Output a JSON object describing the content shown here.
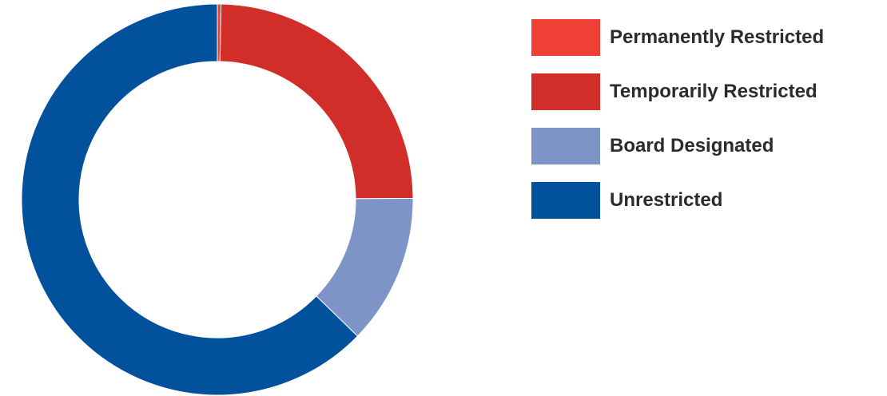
{
  "chart_data": {
    "type": "pie",
    "variant": "donut",
    "categories": [
      "Permanently Restricted",
      "Temporarily Restricted",
      "Board Designated",
      "Unrestricted"
    ],
    "values": [
      0.3,
      24.6,
      12.4,
      62.7
    ],
    "colors": [
      "#ef4036",
      "#d12e29",
      "#7e93c6",
      "#02519c"
    ],
    "legend_position": "right"
  },
  "legend": {
    "items": [
      {
        "label": "Permanently Restricted",
        "color": "#ef4036"
      },
      {
        "label": "Temporarily Restricted",
        "color": "#d12e29"
      },
      {
        "label": "Board Designated",
        "color": "#7e93c6"
      },
      {
        "label": "Unrestricted",
        "color": "#02519c"
      }
    ]
  }
}
